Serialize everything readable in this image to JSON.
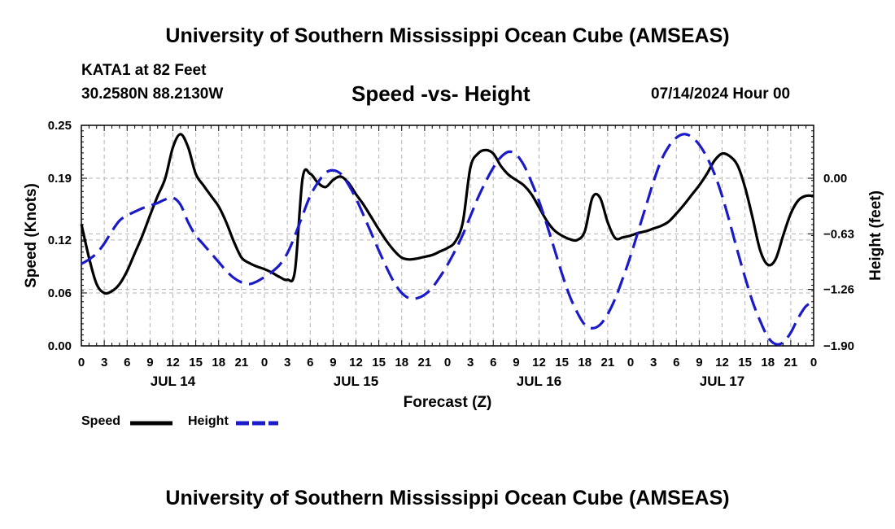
{
  "page": {
    "title": "University of Southern Mississippi Ocean Cube (AMSEAS)",
    "station": "KATA1 at 82 Feet",
    "coordinates": "30.2580N  88.2130W",
    "forecast_date": "07/14/2024 Hour 00",
    "footer_title": "University of Southern Mississippi Ocean Cube (AMSEAS)"
  },
  "chart_data": {
    "type": "line",
    "title": "Speed -vs- Height",
    "xlabel": "Forecast (Z)",
    "ylabel": "Speed (Knots)",
    "y2label": "Height (feet)",
    "xlim": [
      0,
      96
    ],
    "ylim": [
      0.0,
      0.25
    ],
    "y2lim": [
      -1.9,
      0.6
    ],
    "x_ticks": [
      0,
      3,
      6,
      9,
      12,
      15,
      18,
      21,
      24,
      27,
      30,
      33,
      36,
      39,
      42,
      45,
      48,
      51,
      54,
      57,
      60,
      63,
      66,
      69,
      72,
      75,
      78,
      81,
      84,
      87,
      90,
      93,
      96
    ],
    "x_tick_labels": [
      "0",
      "3",
      "6",
      "9",
      "12",
      "15",
      "18",
      "21",
      "0",
      "3",
      "6",
      "9",
      "12",
      "15",
      "18",
      "21",
      "0",
      "3",
      "6",
      "9",
      "12",
      "15",
      "18",
      "21",
      "0",
      "3",
      "6",
      "9",
      "12",
      "15",
      "18",
      "21",
      "0"
    ],
    "day_labels": [
      {
        "x": 12,
        "label": "JUL 14"
      },
      {
        "x": 36,
        "label": "JUL 15"
      },
      {
        "x": 60,
        "label": "JUL 16"
      },
      {
        "x": 84,
        "label": "JUL 17"
      }
    ],
    "y_ticks": [
      0.0,
      0.06,
      0.12,
      0.19,
      0.25
    ],
    "y_tick_labels": [
      "0.00",
      "0.06",
      "0.12",
      "0.19",
      "0.25"
    ],
    "y2_ticks": [
      0.0,
      -0.63,
      -1.26,
      -1.9
    ],
    "y2_tick_labels": [
      "0.00",
      "−0.63",
      "−1.26",
      "−1.90"
    ],
    "grid": true,
    "series": [
      {
        "name": "Speed",
        "axis": "left",
        "color": "#000000",
        "dash": "solid",
        "x": [
          0,
          1,
          2,
          3,
          4,
          5,
          6,
          7,
          8,
          9,
          10,
          11,
          12,
          13,
          14,
          15,
          16,
          17,
          18,
          19,
          20,
          21,
          22,
          23,
          24,
          25,
          26,
          27,
          28,
          29,
          30,
          31,
          32,
          33,
          34,
          35,
          36,
          37,
          38,
          39,
          40,
          41,
          42,
          43,
          44,
          45,
          46,
          47,
          48,
          49,
          50,
          51,
          52,
          53,
          54,
          55,
          56,
          57,
          58,
          59,
          60,
          61,
          62,
          63,
          64,
          65,
          66,
          67,
          68,
          69,
          70,
          71,
          72,
          73,
          74,
          75,
          76,
          77,
          78,
          79,
          80,
          81,
          82,
          83,
          84,
          85,
          86,
          87,
          88,
          89,
          90,
          91,
          92,
          93,
          94,
          95,
          96
        ],
        "values": [
          0.138,
          0.1,
          0.07,
          0.06,
          0.062,
          0.07,
          0.085,
          0.105,
          0.125,
          0.148,
          0.17,
          0.19,
          0.225,
          0.24,
          0.225,
          0.195,
          0.182,
          0.17,
          0.158,
          0.14,
          0.118,
          0.1,
          0.094,
          0.09,
          0.087,
          0.083,
          0.078,
          0.075,
          0.085,
          0.19,
          0.195,
          0.185,
          0.18,
          0.188,
          0.192,
          0.185,
          0.172,
          0.16,
          0.146,
          0.132,
          0.119,
          0.108,
          0.1,
          0.098,
          0.099,
          0.101,
          0.103,
          0.107,
          0.111,
          0.118,
          0.14,
          0.202,
          0.218,
          0.222,
          0.218,
          0.204,
          0.194,
          0.188,
          0.182,
          0.172,
          0.157,
          0.142,
          0.131,
          0.125,
          0.121,
          0.12,
          0.13,
          0.168,
          0.168,
          0.14,
          0.122,
          0.123,
          0.125,
          0.128,
          0.13,
          0.133,
          0.136,
          0.141,
          0.15,
          0.16,
          0.171,
          0.182,
          0.195,
          0.21,
          0.218,
          0.215,
          0.205,
          0.18,
          0.145,
          0.108,
          0.092,
          0.098,
          0.125,
          0.15,
          0.165,
          0.17,
          0.17
        ]
      },
      {
        "name": "Height",
        "axis": "right",
        "color": "#1a1ac8",
        "dash": "dashed",
        "x": [
          0,
          1,
          2,
          3,
          4,
          5,
          6,
          7,
          8,
          9,
          10,
          11,
          12,
          13,
          14,
          15,
          16,
          17,
          18,
          19,
          20,
          21,
          22,
          23,
          24,
          25,
          26,
          27,
          28,
          29,
          30,
          31,
          32,
          33,
          34,
          35,
          36,
          37,
          38,
          39,
          40,
          41,
          42,
          43,
          44,
          45,
          46,
          47,
          48,
          49,
          50,
          51,
          52,
          53,
          54,
          55,
          56,
          57,
          58,
          59,
          60,
          61,
          62,
          63,
          64,
          65,
          66,
          67,
          68,
          69,
          70,
          71,
          72,
          73,
          74,
          75,
          76,
          77,
          78,
          79,
          80,
          81,
          82,
          83,
          84,
          85,
          86,
          87,
          88,
          89,
          90,
          91,
          92,
          93,
          94,
          95,
          96
        ],
        "values": [
          -0.97,
          -0.92,
          -0.85,
          -0.74,
          -0.6,
          -0.48,
          -0.42,
          -0.38,
          -0.34,
          -0.31,
          -0.28,
          -0.24,
          -0.22,
          -0.3,
          -0.5,
          -0.65,
          -0.75,
          -0.85,
          -0.95,
          -1.05,
          -1.13,
          -1.18,
          -1.2,
          -1.17,
          -1.12,
          -1.06,
          -0.98,
          -0.85,
          -0.65,
          -0.42,
          -0.2,
          -0.05,
          0.06,
          0.09,
          0.05,
          -0.07,
          -0.23,
          -0.42,
          -0.62,
          -0.82,
          -1.01,
          -1.18,
          -1.3,
          -1.36,
          -1.36,
          -1.32,
          -1.24,
          -1.12,
          -0.98,
          -0.82,
          -0.64,
          -0.43,
          -0.22,
          -0.04,
          0.12,
          0.24,
          0.3,
          0.27,
          0.15,
          -0.04,
          -0.26,
          -0.52,
          -0.8,
          -1.08,
          -1.33,
          -1.52,
          -1.66,
          -1.7,
          -1.66,
          -1.54,
          -1.36,
          -1.13,
          -0.88,
          -0.6,
          -0.32,
          -0.04,
          0.2,
          0.36,
          0.46,
          0.5,
          0.47,
          0.38,
          0.24,
          0.05,
          -0.2,
          -0.5,
          -0.82,
          -1.12,
          -1.4,
          -1.62,
          -1.8,
          -1.88,
          -1.86,
          -1.75,
          -1.58,
          -1.45,
          -1.4
        ]
      }
    ],
    "legend": [
      {
        "label": "Speed",
        "series": 0
      },
      {
        "label": "Height",
        "series": 1
      }
    ]
  }
}
